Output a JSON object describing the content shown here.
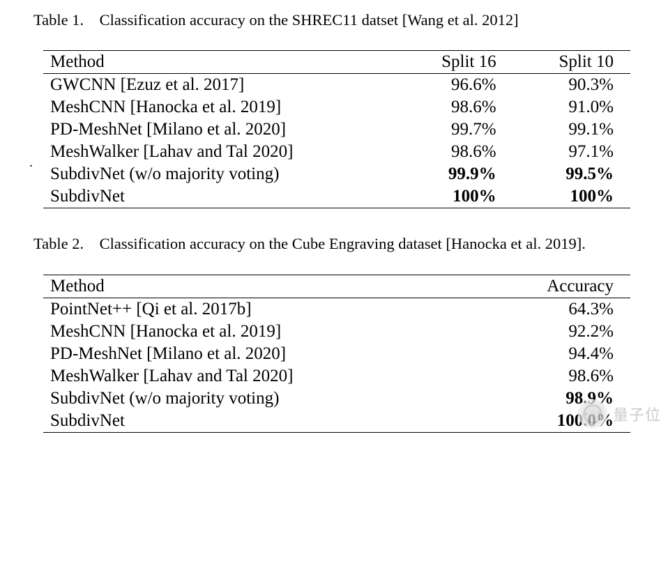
{
  "table1": {
    "type": "table",
    "caption": "Table 1. Classification accuracy on the SHREC11 datset [Wang et al. 2012]",
    "caption_fontsize": 22.5,
    "body_fontsize": 25,
    "rule_color": "#000000",
    "text_color": "#000000",
    "background_color": "#ffffff",
    "columns": [
      {
        "label": "Method",
        "align": "left",
        "width_pct": 58
      },
      {
        "label": "Split 16",
        "align": "right",
        "width_pct": 22
      },
      {
        "label": "Split 10",
        "align": "right",
        "width_pct": 20
      }
    ],
    "rows": [
      {
        "method": "GWCNN [Ezuz et al. 2017]",
        "split16": "96.6%",
        "split10": "90.3%",
        "bold": false
      },
      {
        "method": "MeshCNN [Hanocka et al. 2019]",
        "split16": "98.6%",
        "split10": "91.0%",
        "bold": false
      },
      {
        "method": "PD-MeshNet [Milano et al. 2020]",
        "split16": "99.7%",
        "split10": "99.1%",
        "bold": false
      },
      {
        "method": "MeshWalker [Lahav and Tal 2020]",
        "split16": "98.6%",
        "split10": "97.1%",
        "bold": false
      },
      {
        "method": "SubdivNet (w/o majority voting)",
        "split16": "99.9%",
        "split10": "99.5%",
        "bold": true
      },
      {
        "method": "SubdivNet",
        "split16": "100%",
        "split10": "100%",
        "bold": true
      }
    ]
  },
  "table2": {
    "type": "table",
    "caption": "Table 2. Classification accuracy on the Cube Engraving dataset [Hanocka et al. 2019].",
    "caption_fontsize": 22.5,
    "body_fontsize": 25,
    "rule_color": "#000000",
    "text_color": "#000000",
    "background_color": "#ffffff",
    "columns": [
      {
        "label": "Method",
        "align": "left",
        "width_pct": 70
      },
      {
        "label": "Accuracy",
        "align": "right",
        "width_pct": 30
      }
    ],
    "rows": [
      {
        "method": "PointNet++ [Qi et al. 2017b]",
        "accuracy": "64.3%",
        "bold": false
      },
      {
        "method": "MeshCNN [Hanocka et al. 2019]",
        "accuracy": "92.2%",
        "bold": false
      },
      {
        "method": "PD-MeshNet [Milano et al. 2020]",
        "accuracy": "94.4%",
        "bold": false
      },
      {
        "method": "MeshWalker [Lahav and Tal 2020]",
        "accuracy": "98.6%",
        "bold": false
      },
      {
        "method": "SubdivNet (w/o majority voting)",
        "accuracy": "98.9%",
        "bold": true
      },
      {
        "method": "SubdivNet",
        "accuracy": "100.0%",
        "bold": true
      }
    ]
  },
  "stray_dot": ".",
  "watermark": {
    "text": "量子位",
    "text_color": "#b8b8b8",
    "icon_color": "#bfbfbf",
    "fontsize": 22
  }
}
